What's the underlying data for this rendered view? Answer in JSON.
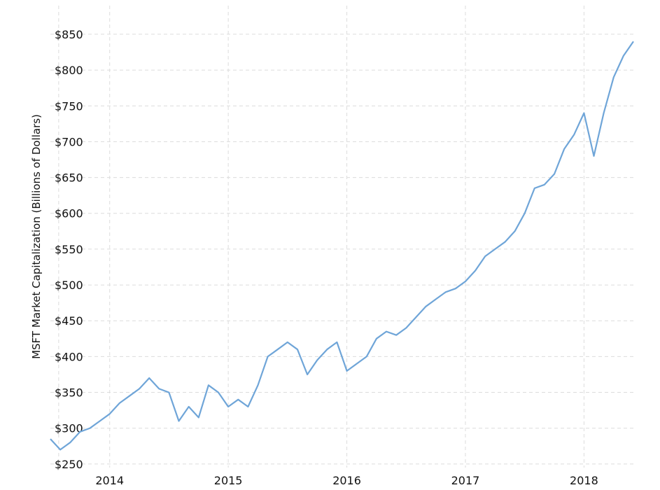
{
  "chart_data": {
    "type": "line",
    "title": "",
    "xlabel": "",
    "ylabel": "MSFT Market Capitalization (Billions of Dollars)",
    "x_ticks": [
      "2014",
      "2015",
      "2016",
      "2017",
      "2018"
    ],
    "y_ticks": [
      "$250",
      "$300",
      "$350",
      "$400",
      "$450",
      "$500",
      "$550",
      "$600",
      "$650",
      "$700",
      "$750",
      "$800",
      "$850"
    ],
    "ylim": [
      245,
      890
    ],
    "xlim": [
      "2013-07",
      "2018-06"
    ],
    "grid": true,
    "line_color": "#6fa5d8",
    "series": [
      {
        "name": "",
        "x": [
          "2013-07",
          "2013-08",
          "2013-09",
          "2013-10",
          "2013-11",
          "2013-12",
          "2014-01",
          "2014-02",
          "2014-03",
          "2014-04",
          "2014-05",
          "2014-06",
          "2014-07",
          "2014-08",
          "2014-09",
          "2014-10",
          "2014-11",
          "2014-12",
          "2015-01",
          "2015-02",
          "2015-03",
          "2015-04",
          "2015-05",
          "2015-06",
          "2015-07",
          "2015-08",
          "2015-09",
          "2015-10",
          "2015-11",
          "2015-12",
          "2016-01",
          "2016-02",
          "2016-03",
          "2016-04",
          "2016-05",
          "2016-06",
          "2016-07",
          "2016-08",
          "2016-09",
          "2016-10",
          "2016-11",
          "2016-12",
          "2017-01",
          "2017-02",
          "2017-03",
          "2017-04",
          "2017-05",
          "2017-06",
          "2017-07",
          "2017-08",
          "2017-09",
          "2017-10",
          "2017-11",
          "2017-12",
          "2018-01",
          "2018-02",
          "2018-03",
          "2018-04",
          "2018-05",
          "2018-06"
        ],
        "values": [
          285,
          270,
          280,
          295,
          300,
          310,
          320,
          335,
          345,
          355,
          370,
          355,
          350,
          310,
          330,
          315,
          360,
          350,
          330,
          340,
          330,
          360,
          400,
          410,
          420,
          410,
          375,
          395,
          410,
          420,
          380,
          390,
          400,
          425,
          435,
          430,
          440,
          455,
          470,
          480,
          490,
          495,
          505,
          520,
          540,
          550,
          560,
          575,
          600,
          635,
          640,
          655,
          690,
          710,
          740,
          680,
          740,
          790,
          820,
          840
        ]
      }
    ]
  }
}
